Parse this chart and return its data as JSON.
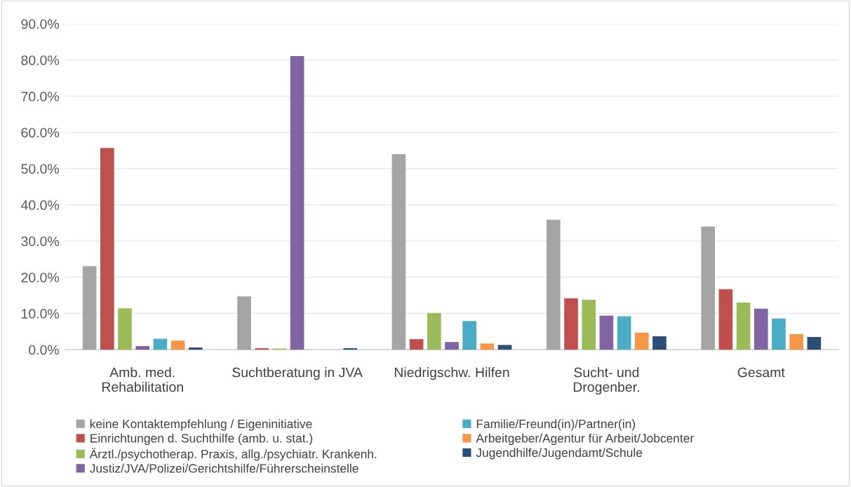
{
  "chart_data": {
    "type": "bar",
    "categories": [
      "Amb. med.\nRehabilitation",
      "Suchtberatung in JVA",
      "Niedrigschw. Hilfen",
      "Sucht- und\nDrogenber.",
      "Gesamt"
    ],
    "series": [
      {
        "name": "keine Kontaktempfehlung / Eigeninitiative",
        "color": "#a5a5a5",
        "values": [
          23.1,
          14.7,
          54.0,
          35.9,
          34.0
        ]
      },
      {
        "name": "Einrichtungen d. Suchthilfe (amb. u. stat.)",
        "color": "#c0504d",
        "values": [
          55.7,
          0.4,
          2.9,
          14.2,
          16.7
        ]
      },
      {
        "name": "Ärztl./psychotherap. Praxis, allg./psychiatr. Krankenh.",
        "color": "#9bbb59",
        "values": [
          11.4,
          0.3,
          10.1,
          13.8,
          13.0
        ]
      },
      {
        "name": "Justiz/JVA/Polizei/Gerichtshilfe/Führerscheinstelle",
        "color": "#8064a2",
        "values": [
          1.0,
          81.1,
          2.1,
          9.4,
          11.3
        ]
      },
      {
        "name": "Familie/Freund(in)/Partner(in)",
        "color": "#4bacc6",
        "values": [
          3.0,
          0.0,
          7.9,
          9.2,
          8.6
        ]
      },
      {
        "name": "Arbeitgeber/Agentur für Arbeit/Jobcenter",
        "color": "#f79646",
        "values": [
          2.5,
          0.0,
          1.7,
          4.7,
          4.3
        ]
      },
      {
        "name": "Jugendhilfe/Jugendamt/Schule",
        "color": "#2c4d75",
        "values": [
          0.6,
          0.4,
          1.3,
          3.7,
          3.5
        ]
      }
    ],
    "ylim": [
      0,
      90
    ],
    "yticks": [
      {
        "value": 0,
        "label": "0.0%"
      },
      {
        "value": 10,
        "label": "10.0%"
      },
      {
        "value": 20,
        "label": "20.0%"
      },
      {
        "value": 30,
        "label": "30.0%"
      },
      {
        "value": 40,
        "label": "40.0%"
      },
      {
        "value": 50,
        "label": "50.0%"
      },
      {
        "value": 60,
        "label": "60.0%"
      },
      {
        "value": 70,
        "label": "70.0%"
      },
      {
        "value": 80,
        "label": "80.0%"
      },
      {
        "value": 90,
        "label": "90.0%"
      }
    ],
    "grid": "y",
    "legend": "bottom"
  }
}
